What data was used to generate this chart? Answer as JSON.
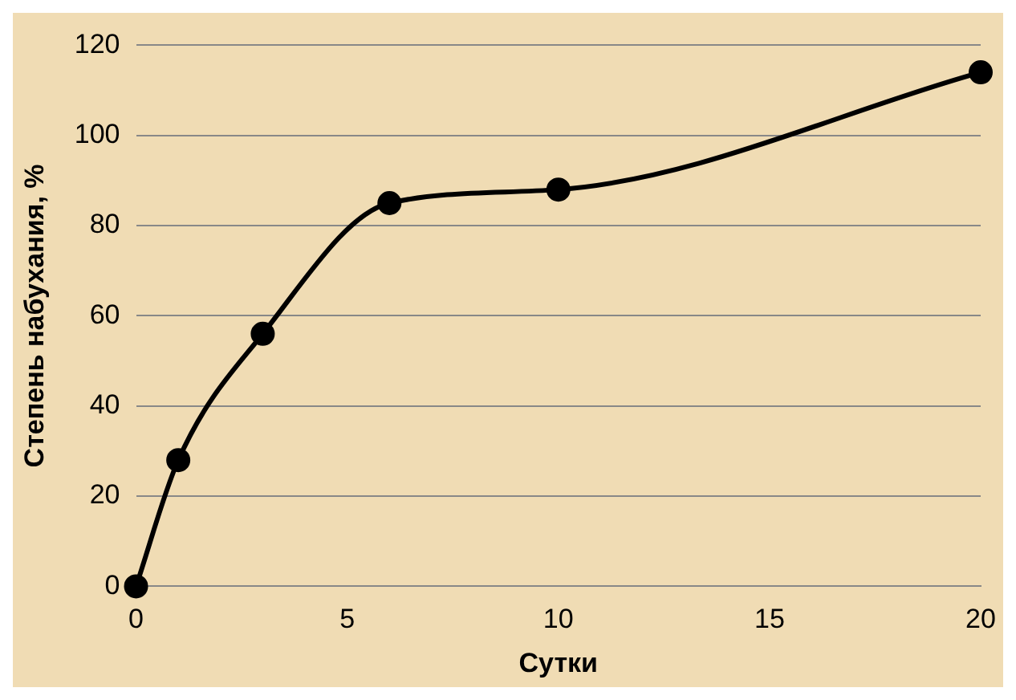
{
  "chart_data": {
    "type": "line",
    "xlabel": "Сутки",
    "ylabel": "Степень набухания, %",
    "x": [
      0,
      1,
      3,
      6,
      10,
      20
    ],
    "series": [
      {
        "color": "#000000",
        "values": [
          0,
          28,
          56,
          85,
          88,
          114
        ]
      }
    ],
    "xlim": [
      0,
      20
    ],
    "xticks": [
      0,
      5,
      10,
      15,
      20
    ],
    "ylim": [
      0,
      120
    ],
    "yticks": [
      0,
      20,
      40,
      60,
      80,
      100,
      120
    ],
    "grid": "y",
    "legend": false,
    "marker": "circle",
    "line_style": "solid"
  }
}
